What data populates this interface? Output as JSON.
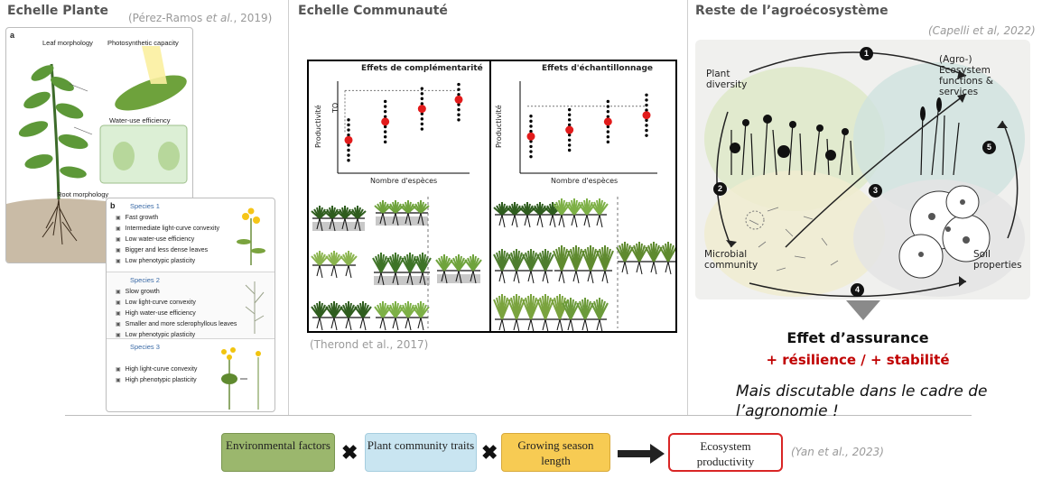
{
  "col1": {
    "title": "Echelle Plante",
    "citation_authors": "(Pérez-Ramos",
    "citation_etal": "et al.",
    "citation_year": ", 2019)",
    "panel_a": {
      "letter": "a",
      "leaf_morphology": "Leaf morphology",
      "photosynthetic_capacity": "Photosynthetic capacity",
      "water_use_efficiency": "Water-use efficiency",
      "root_morphology": "Root morphology"
    },
    "panel_b": {
      "letter": "b",
      "species": [
        {
          "name": "Species 1",
          "traits": [
            "Fast growth",
            "Intermediate light-curve convexity",
            "Low water-use efficiency",
            "Bigger and less dense leaves",
            "Low phenotypic plasticity"
          ]
        },
        {
          "name": "Species 2",
          "traits": [
            "Slow growth",
            "Low light-curve convexity",
            "High water-use efficiency",
            "Smaller and more sclerophyllous leaves",
            "Low phenotypic plasticity"
          ]
        },
        {
          "name": "Species 3",
          "traits": [
            "High light-curve convexity",
            "High phenotypic plasticity"
          ]
        }
      ]
    }
  },
  "col2": {
    "title": "Echelle Communauté",
    "citation": "(Therond et al., 2017)",
    "chart_data": [
      {
        "type": "scatter",
        "title": "Effets de complémentarité",
        "xlabel": "Nombre d'espèces",
        "ylabel": "Productivité",
        "annotation": "TO",
        "categories": [
          1,
          2,
          3,
          4
        ],
        "means": [
          3.6,
          5.6,
          7.0,
          8.0
        ],
        "ylim": [
          0,
          10
        ]
      },
      {
        "type": "scatter",
        "title": "Effets d'échantillonnage",
        "xlabel": "Nombre d'espèces",
        "ylabel": "Productivité",
        "categories": [
          1,
          2,
          3,
          4
        ],
        "means": [
          4.0,
          4.7,
          5.6,
          6.3
        ],
        "ylim": [
          0,
          10
        ]
      }
    ]
  },
  "col3": {
    "title": "Reste de l’agroécosystème",
    "citation": "(Capelli et al, 2022)",
    "labels": {
      "plant_diversity": "Plant diversity",
      "ecosystem_services": "(Agro-) Ecosystem functions & services",
      "microbial_community": "Microbial community",
      "soil_properties": "Soil properties"
    },
    "numbers": [
      "1",
      "2",
      "3",
      "4",
      "5"
    ],
    "effet": "Effet d’assurance",
    "resilience": "+ résilience / + stabilité",
    "discutable": "Mais discutable dans le cadre de l’agronomie !"
  },
  "bottom": {
    "env": "Environmental factors",
    "traits": "Plant community traits",
    "season": "Growing season length",
    "productivity": "Ecosystem productivity",
    "times": "✖",
    "citation": "(Yan et al., 2023)",
    "colors": {
      "env": "#9bb76d",
      "traits": "#c9e5f1",
      "season": "#f7cb53",
      "productivity_border": "#d92525"
    }
  }
}
